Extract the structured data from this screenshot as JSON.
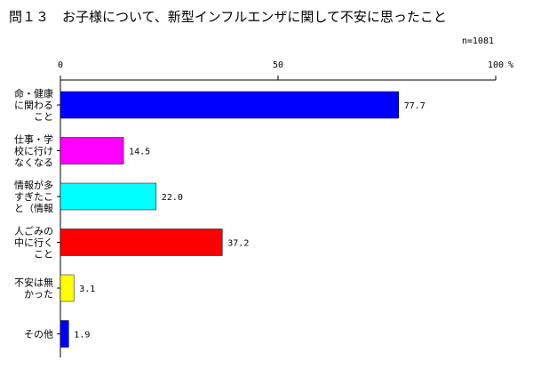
{
  "chart_data": {
    "type": "bar",
    "orientation": "horizontal",
    "title": "問１３　お子様について、新型インフルエンザに関して不安に思ったこと",
    "note": "n=1081",
    "unit": "%",
    "xlim": [
      0,
      100
    ],
    "ticks": [
      0,
      50,
      100
    ],
    "grid": false,
    "categories": [
      [
        "命・健康",
        "に関わる",
        "こと"
      ],
      [
        "仕事・学",
        "校に行け",
        "なくなる"
      ],
      [
        "情報が多",
        "すぎたこ",
        "と（情報"
      ],
      [
        "人ごみの",
        "中に行く",
        "こと"
      ],
      [
        "不安は無",
        "かった"
      ],
      [
        "その他"
      ]
    ],
    "values": [
      77.7,
      14.5,
      22.0,
      37.2,
      3.1,
      1.9
    ],
    "value_labels": [
      "77.7",
      "14.5",
      "22.0",
      "37.2",
      "3.1",
      "1.9"
    ],
    "colors": [
      "#0000ff",
      "#ff00ff",
      "#00ffff",
      "#ff0000",
      "#ffff00",
      "#0000ff"
    ]
  }
}
